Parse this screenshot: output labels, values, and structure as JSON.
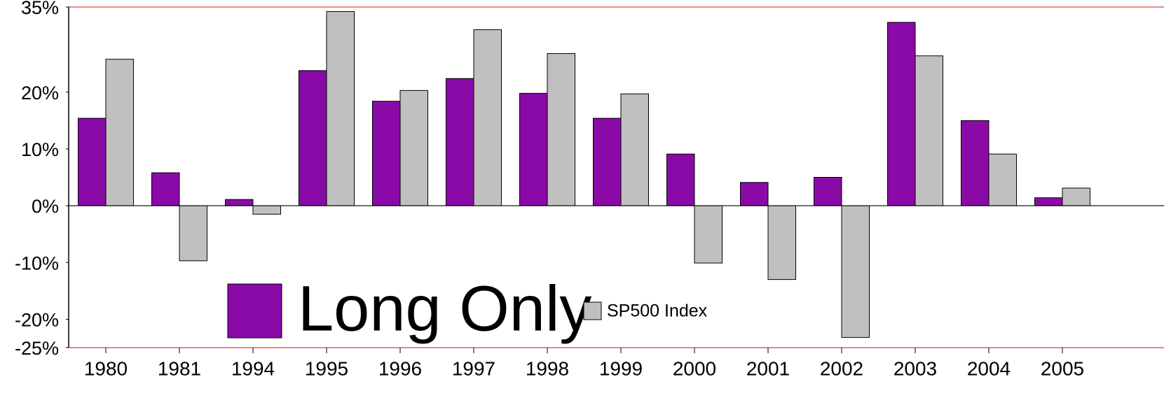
{
  "chart_data": {
    "type": "bar",
    "categories": [
      "1980",
      "1981",
      "1994",
      "1995",
      "1996",
      "1997",
      "1998",
      "1999",
      "2000",
      "2001",
      "2002",
      "2003",
      "2004",
      "2005"
    ],
    "series": [
      {
        "name": "Long Only",
        "color": "#8a0aa8",
        "values": [
          15.4,
          5.8,
          1.1,
          23.8,
          18.4,
          22.4,
          19.8,
          15.4,
          9.1,
          4.1,
          5.0,
          32.3,
          15.0,
          1.4
        ]
      },
      {
        "name": "SP500 Index",
        "color": "#c0c0c0",
        "values": [
          25.8,
          -9.7,
          -1.5,
          34.2,
          20.3,
          31.0,
          26.8,
          19.7,
          -10.1,
          -13.0,
          -23.2,
          26.4,
          9.1,
          3.1
        ]
      }
    ],
    "ylim": [
      -25,
      35
    ],
    "yticks": [
      {
        "value": -25,
        "label": "-25%"
      },
      {
        "value": -20,
        "label": "-20%"
      },
      {
        "value": -10,
        "label": "-10%"
      },
      {
        "value": 0,
        "label": "0%"
      },
      {
        "value": 10,
        "label": "10%"
      },
      {
        "value": 20,
        "label": "20%"
      },
      {
        "value": 35,
        "label": "35%"
      }
    ]
  }
}
